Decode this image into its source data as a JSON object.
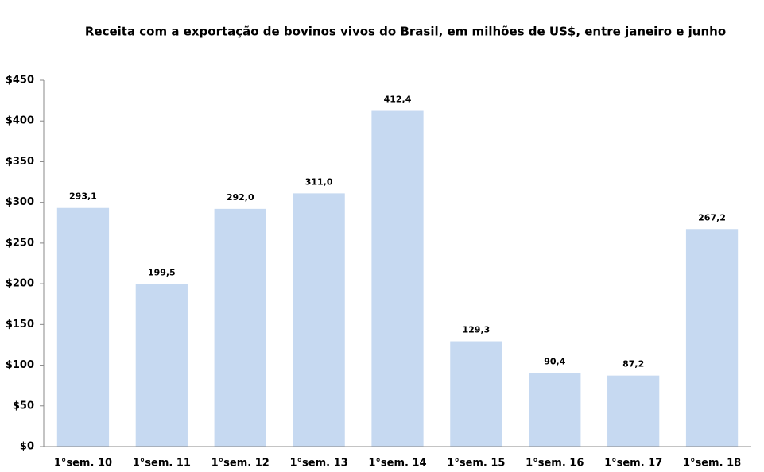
{
  "chart_data": {
    "type": "bar",
    "title": "Receita com a exportação de bovinos vivos do Brasil, em milhões de US$, entre janeiro e junho",
    "categories": [
      "1°sem. 10",
      "1°sem. 11",
      "1°sem. 12",
      "1°sem. 13",
      "1°sem. 14",
      "1°sem. 15",
      "1°sem. 16",
      "1°sem. 17",
      "1°sem. 18"
    ],
    "values": [
      293.1,
      199.5,
      292.0,
      311.0,
      412.4,
      129.3,
      90.4,
      87.2,
      267.2
    ],
    "value_labels": [
      "293,1",
      "199,5",
      "292,0",
      "311,0",
      "412,4",
      "129,3",
      "90,4",
      "87,2",
      "267,2"
    ],
    "color": "#c6d9f1",
    "ylim": [
      0,
      450
    ],
    "yticks": [
      {
        "value": 0,
        "label": "$0"
      },
      {
        "value": 50,
        "label": "$50"
      },
      {
        "value": 100,
        "label": "$100"
      },
      {
        "value": 150,
        "label": "$150"
      },
      {
        "value": 200,
        "label": "$200"
      },
      {
        "value": 250,
        "label": "$250"
      },
      {
        "value": 300,
        "label": "$300"
      },
      {
        "value": 350,
        "label": "$350"
      },
      {
        "value": 400,
        "label": "$400"
      },
      {
        "value": 450,
        "label": "$450"
      }
    ],
    "grid": false
  }
}
